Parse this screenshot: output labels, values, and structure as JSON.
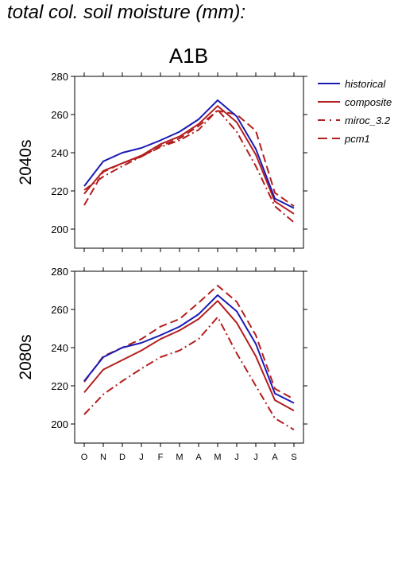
{
  "header": {
    "title": "total col. soil moisture (mm):",
    "scenario": "A1B"
  },
  "colors": {
    "historical": "#1a1ab4",
    "model": "#b41e1e"
  },
  "chart_data": [
    {
      "type": "line",
      "row_label": "2040s",
      "categories": [
        "O",
        "N",
        "D",
        "J",
        "F",
        "M",
        "A",
        "M",
        "J",
        "J",
        "A",
        "S"
      ],
      "ylim": [
        190,
        280
      ],
      "yticks": [
        200,
        220,
        240,
        260,
        280
      ],
      "grid": false,
      "series": [
        {
          "name": "historical",
          "style": "solid",
          "color": "historical",
          "values": [
            222.5,
            235.5,
            240,
            242.5,
            246.5,
            251,
            257.5,
            267.5,
            259,
            242,
            216,
            211
          ]
        },
        {
          "name": "composite",
          "style": "solid",
          "color": "model",
          "values": [
            218.5,
            230.5,
            234.5,
            238.5,
            244.5,
            248.5,
            255,
            264.5,
            256,
            239,
            214.5,
            208
          ]
        },
        {
          "name": "miroc_3.2",
          "style": "dashdot",
          "color": "model",
          "values": [
            220.5,
            227.5,
            233,
            238,
            243,
            246.5,
            252,
            262.5,
            251,
            233,
            212,
            203.5
          ]
        },
        {
          "name": "pcm1",
          "style": "dashed",
          "color": "model",
          "values": [
            212.5,
            230,
            234.5,
            238,
            243.5,
            247.5,
            254,
            262,
            260,
            251.5,
            219,
            212
          ]
        }
      ]
    },
    {
      "type": "line",
      "row_label": "2080s",
      "categories": [
        "O",
        "N",
        "D",
        "J",
        "F",
        "M",
        "A",
        "M",
        "J",
        "J",
        "A",
        "S"
      ],
      "ylim": [
        190,
        280
      ],
      "yticks": [
        200,
        220,
        240,
        260,
        280
      ],
      "grid": false,
      "series": [
        {
          "name": "historical",
          "style": "solid",
          "color": "historical",
          "values": [
            222.5,
            235,
            240,
            242.5,
            246.5,
            251,
            257.5,
            267.5,
            259,
            242,
            216,
            211
          ]
        },
        {
          "name": "composite",
          "style": "solid",
          "color": "model",
          "values": [
            216.5,
            228.5,
            233.5,
            238.5,
            244.5,
            249,
            255,
            264.5,
            253,
            235.5,
            212.5,
            207
          ]
        },
        {
          "name": "miroc_3.2",
          "style": "dashdot",
          "color": "model",
          "values": [
            205,
            215.5,
            222.5,
            229,
            235,
            238.5,
            244.5,
            256,
            237,
            220,
            203,
            197
          ]
        },
        {
          "name": "pcm1",
          "style": "dashed",
          "color": "model",
          "values": [
            222,
            235.5,
            240,
            244.5,
            251,
            255,
            263.5,
            272.5,
            264,
            246.5,
            218.5,
            213
          ]
        }
      ]
    }
  ],
  "legend": {
    "placement": "right",
    "items": [
      {
        "label": "historical",
        "style": "solid",
        "color": "historical"
      },
      {
        "label": "composite",
        "style": "solid",
        "color": "model"
      },
      {
        "label": "miroc_3.2",
        "style": "dashdot",
        "color": "model"
      },
      {
        "label": "pcm1",
        "style": "dashed",
        "color": "model"
      }
    ]
  }
}
